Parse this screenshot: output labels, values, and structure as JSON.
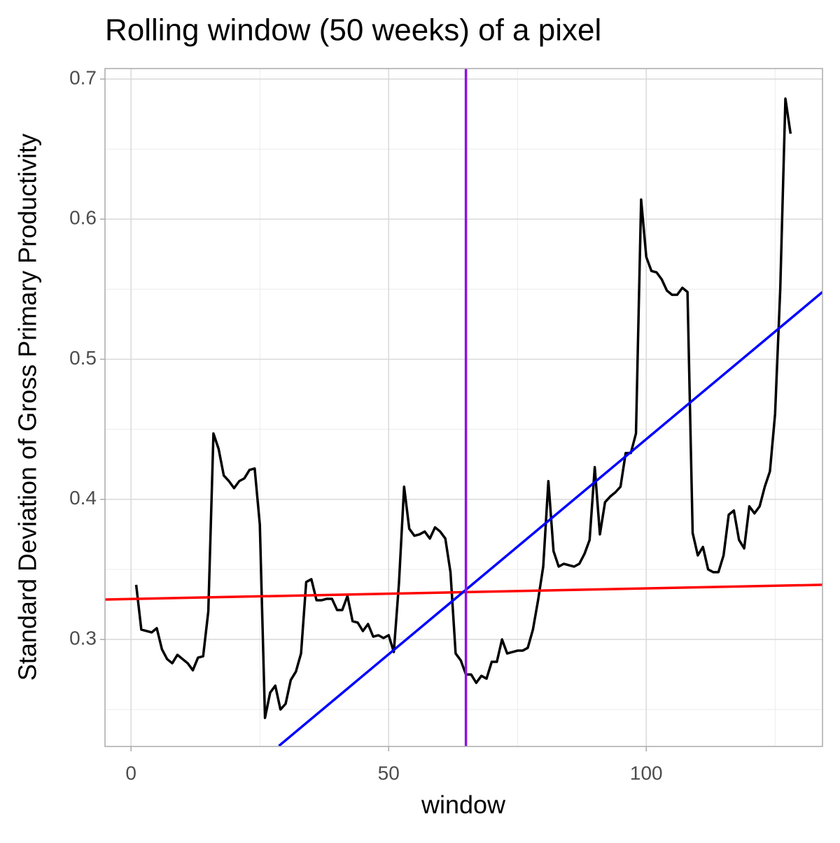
{
  "chart_data": {
    "type": "line",
    "title": "Rolling window (50 weeks) of a pixel",
    "x_label": "window",
    "y_label": "Standard Deviation of Gross Primary Productivity",
    "x": [
      1,
      2,
      3,
      4,
      5,
      6,
      7,
      8,
      9,
      10,
      11,
      12,
      13,
      14,
      15,
      16,
      17,
      18,
      19,
      20,
      21,
      22,
      23,
      24,
      25,
      26,
      27,
      28,
      29,
      30,
      31,
      32,
      33,
      34,
      35,
      36,
      37,
      38,
      39,
      40,
      41,
      42,
      43,
      44,
      45,
      46,
      47,
      48,
      49,
      50,
      51,
      52,
      53,
      54,
      55,
      56,
      57,
      58,
      59,
      60,
      61,
      62,
      63,
      64,
      65,
      66,
      67,
      68,
      69,
      70,
      71,
      72,
      73,
      74,
      75,
      76,
      77,
      78,
      79,
      80,
      81,
      82,
      83,
      84,
      85,
      86,
      87,
      88,
      89,
      90,
      91,
      92,
      93,
      94,
      95,
      96,
      97,
      98,
      99,
      100,
      101,
      102,
      103,
      104,
      105,
      106,
      107,
      108,
      109,
      110,
      111,
      112,
      113,
      114,
      115,
      116,
      117,
      118,
      119,
      120,
      121,
      122,
      123,
      124,
      125,
      126,
      127,
      128
    ],
    "series": [
      {
        "color": "#000000",
        "values": [
          0.339,
          0.307,
          0.306,
          0.305,
          0.308,
          0.293,
          0.286,
          0.283,
          0.289,
          0.286,
          0.283,
          0.278,
          0.287,
          0.288,
          0.32,
          0.447,
          0.436,
          0.417,
          0.413,
          0.408,
          0.413,
          0.415,
          0.421,
          0.422,
          0.382,
          0.244,
          0.262,
          0.267,
          0.25,
          0.254,
          0.271,
          0.277,
          0.29,
          0.341,
          0.343,
          0.328,
          0.328,
          0.329,
          0.329,
          0.321,
          0.321,
          0.331,
          0.313,
          0.312,
          0.306,
          0.311,
          0.302,
          0.303,
          0.301,
          0.303,
          0.291,
          0.34,
          0.409,
          0.379,
          0.374,
          0.375,
          0.377,
          0.372,
          0.38,
          0.377,
          0.372,
          0.348,
          0.29,
          0.285,
          0.275,
          0.275,
          0.269,
          0.274,
          0.272,
          0.284,
          0.284,
          0.3,
          0.29,
          0.291,
          0.292,
          0.292,
          0.294,
          0.307,
          0.328,
          0.352,
          0.413,
          0.363,
          0.352,
          0.354,
          0.353,
          0.352,
          0.354,
          0.361,
          0.371,
          0.423,
          0.375,
          0.398,
          0.402,
          0.405,
          0.409,
          0.433,
          0.433,
          0.447,
          0.614,
          0.573,
          0.563,
          0.562,
          0.557,
          0.549,
          0.546,
          0.546,
          0.551,
          0.548,
          0.376,
          0.36,
          0.366,
          0.35,
          0.348,
          0.348,
          0.36,
          0.389,
          0.392,
          0.371,
          0.365,
          0.395,
          0.39,
          0.395,
          0.409,
          0.42,
          0.461,
          0.55,
          0.686,
          0.661
        ]
      }
    ],
    "lines": [
      {
        "color": "#ff0000",
        "x": [
          -5.05,
          134.2
        ],
        "values": [
          0.3285,
          0.339
        ]
      },
      {
        "color": "#0000ff",
        "x": [
          28.7,
          134.2
        ],
        "values": [
          0.224,
          0.548
        ]
      }
    ],
    "vline": {
      "x": 65,
      "color": "#8a14e0"
    },
    "xlim": [
      -5.05,
      134.2
    ],
    "ylim": [
      0.2236,
      0.7075
    ],
    "xticks": [
      0,
      50,
      100
    ],
    "yticks": [
      0.3,
      0.4,
      0.5,
      0.6,
      0.7
    ],
    "minor_xticks": [
      25,
      75,
      125
    ],
    "minor_yticks": [
      0.25,
      0.35,
      0.45,
      0.55,
      0.65
    ],
    "grid": true
  }
}
